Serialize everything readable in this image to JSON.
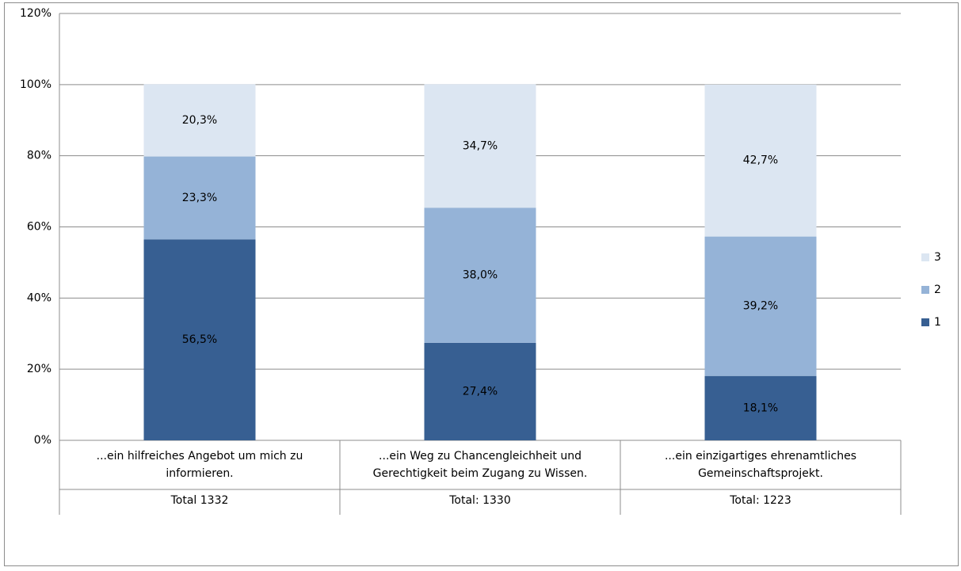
{
  "chart_data": {
    "type": "stacked_bar",
    "categories": [
      [
        "...ein hilfreiches Angebot um mich zu",
        "informieren."
      ],
      [
        "...ein Weg zu Chancengleichheit und",
        "Gerechtigkeit beim Zugang zu Wissen."
      ],
      [
        "...ein einzigartiges ehrenamtliches",
        "Gemeinschaftsprojekt."
      ]
    ],
    "category_totals": [
      "Total 1332",
      "Total: 1330",
      "Total: 1223"
    ],
    "series": [
      {
        "name": "1",
        "color": "#375f92",
        "values": [
          56.5,
          27.4,
          18.1
        ],
        "value_labels": [
          "56,5%",
          "27,4%",
          "18,1%"
        ]
      },
      {
        "name": "2",
        "color": "#95b3d7",
        "values": [
          23.3,
          38.0,
          39.2
        ],
        "value_labels": [
          "23,3%",
          "38,0%",
          "39,2%"
        ]
      },
      {
        "name": "3",
        "color": "#dce6f2",
        "values": [
          20.3,
          34.7,
          42.7
        ],
        "value_labels": [
          "20,3%",
          "34,7%",
          "42,7%"
        ]
      }
    ],
    "ylim": [
      0,
      120
    ],
    "yticks": [
      {
        "value": 0,
        "label": "0%"
      },
      {
        "value": 20,
        "label": "20%"
      },
      {
        "value": 40,
        "label": "40%"
      },
      {
        "value": 60,
        "label": "60%"
      },
      {
        "value": 80,
        "label": "80%"
      },
      {
        "value": 100,
        "label": "100%"
      },
      {
        "value": 120,
        "label": "120%"
      }
    ],
    "grid": true,
    "legend": "right"
  }
}
